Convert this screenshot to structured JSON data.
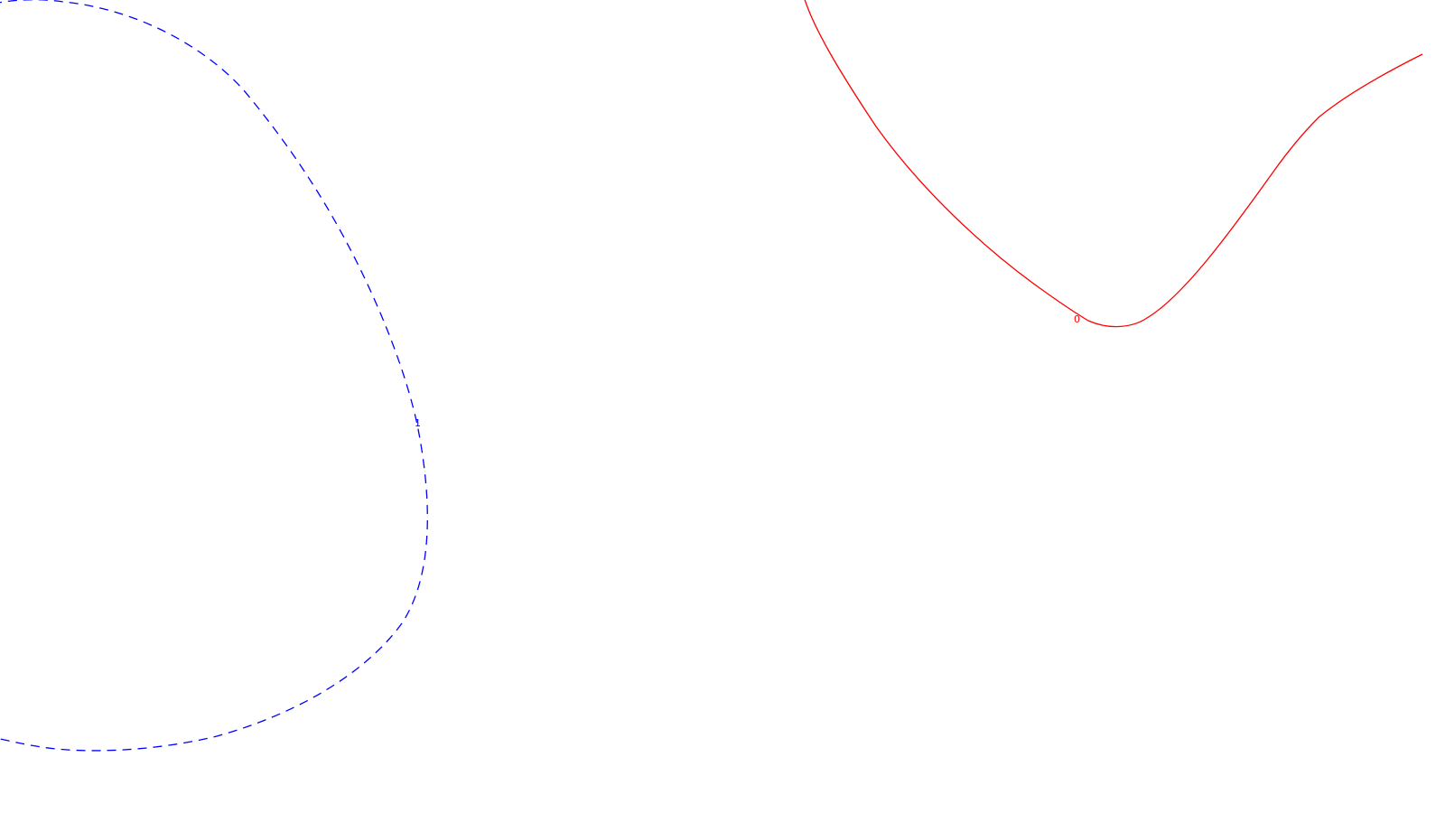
{
  "contours": [
    {
      "id": "contour-0",
      "label": "0",
      "color": "#ff0000",
      "line_style": "solid"
    },
    {
      "id": "contour-1",
      "label": "1",
      "color": "#0000ff",
      "line_style": "dashed"
    }
  ]
}
